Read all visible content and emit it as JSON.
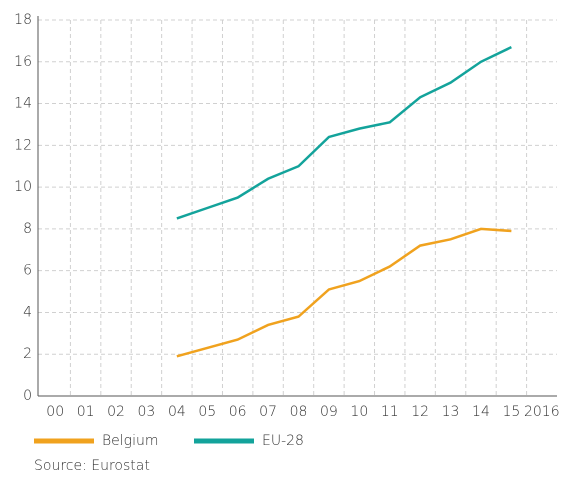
{
  "chart_data": {
    "type": "line",
    "categories": [
      "00",
      "01",
      "02",
      "03",
      "04",
      "05",
      "06",
      "07",
      "08",
      "09",
      "10",
      "11",
      "12",
      "13",
      "14",
      "15",
      "2016"
    ],
    "series": [
      {
        "name": "Belgium",
        "color": "#f0a21e",
        "values": [
          null,
          null,
          null,
          null,
          1.9,
          2.3,
          2.7,
          3.4,
          3.8,
          5.1,
          5.5,
          6.2,
          7.2,
          7.5,
          8.0,
          7.9,
          null
        ]
      },
      {
        "name": "EU-28",
        "color": "#13a39b",
        "values": [
          null,
          null,
          null,
          null,
          8.5,
          9.0,
          9.5,
          10.4,
          11.0,
          12.4,
          12.8,
          13.1,
          14.3,
          15.0,
          16.0,
          16.7,
          null
        ]
      }
    ],
    "ylim": [
      0,
      18
    ],
    "yticks": [
      0,
      2,
      4,
      6,
      8,
      10,
      12,
      14,
      16,
      18
    ],
    "grid": true,
    "source": "Source: Eurostat"
  }
}
